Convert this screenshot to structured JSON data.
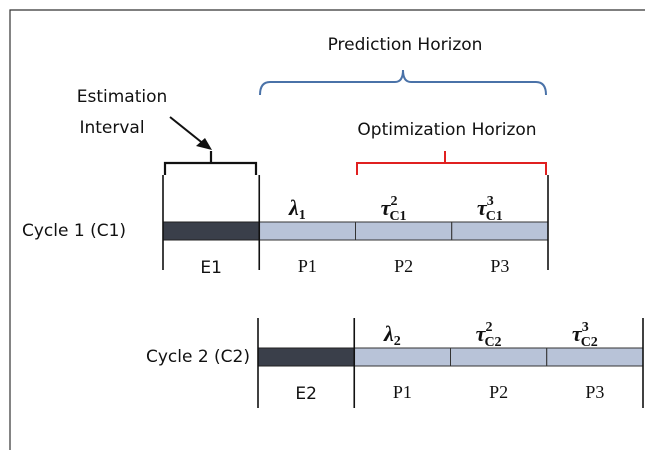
{
  "annotations": {
    "prediction_horizon": "Prediction Horizon",
    "optimization_horizon": "Optimization Horizon",
    "estimation_interval": [
      "Estimation",
      "Interval"
    ]
  },
  "cycles": [
    {
      "label": "Cycle 1 (C1)",
      "estimation": "E1",
      "periods": [
        "P1",
        "P2",
        "P3"
      ],
      "symbols": [
        {
          "symbol": "λ",
          "sub": "1"
        },
        {
          "symbol": "τ",
          "sup": "2",
          "sub": "C1"
        },
        {
          "symbol": "τ",
          "sup": "3",
          "sub": "C1"
        }
      ]
    },
    {
      "label": "Cycle 2 (C2)",
      "estimation": "E2",
      "periods": [
        "P1",
        "P2",
        "P3"
      ],
      "symbols": [
        {
          "symbol": "λ",
          "sub": "2"
        },
        {
          "symbol": "τ",
          "sup": "2",
          "sub": "C2"
        },
        {
          "symbol": "τ",
          "sup": "3",
          "sub": "C2"
        }
      ]
    }
  ]
}
